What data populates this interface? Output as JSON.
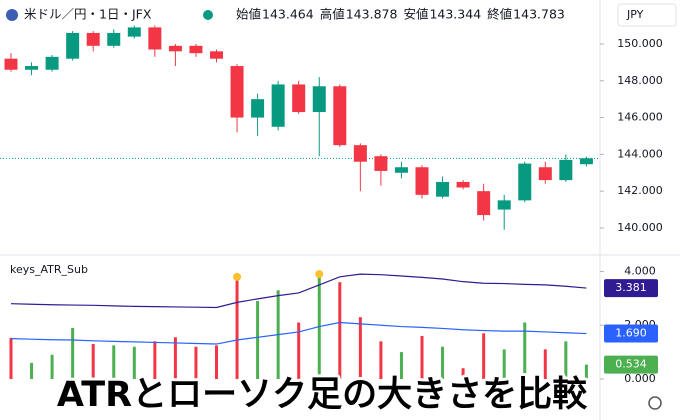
{
  "chart_data": [
    {
      "type": "candlestick",
      "title": "米ドル／円・1日・JFX",
      "currency": "JPY",
      "ohlc_labels": [
        "始値",
        "高値",
        "安値",
        "終値"
      ],
      "ohlc_values": [
        143.464,
        143.878,
        143.344,
        143.783
      ],
      "up_color": "#089981",
      "down_color": "#f23645",
      "open": [
        149.2,
        148.6,
        148.6,
        149.2,
        150.6,
        149.9,
        150.4,
        150.9,
        149.9,
        149.9,
        149.6,
        148.8,
        146.0,
        145.5,
        147.8,
        146.3,
        147.7,
        144.5,
        143.9,
        143.0,
        143.3,
        141.7,
        142.5,
        142.0,
        141.0,
        141.5,
        143.3,
        142.6,
        143.464
      ],
      "high": [
        149.5,
        149.0,
        149.4,
        150.7,
        150.7,
        150.8,
        151.0,
        151.0,
        150.0,
        150.0,
        149.7,
        148.9,
        147.3,
        148.0,
        148.0,
        148.2,
        147.8,
        144.6,
        144.0,
        143.6,
        143.4,
        142.8,
        142.6,
        142.4,
        141.8,
        143.6,
        143.6,
        144.0,
        143.878
      ],
      "low": [
        148.5,
        148.3,
        148.5,
        149.1,
        149.6,
        149.8,
        150.3,
        149.3,
        148.8,
        149.3,
        149.0,
        145.2,
        145.0,
        145.3,
        146.2,
        143.9,
        144.4,
        142.0,
        142.3,
        142.7,
        141.6,
        141.6,
        142.1,
        140.4,
        139.9,
        141.4,
        142.4,
        142.5,
        143.344
      ],
      "close": [
        148.6,
        148.8,
        149.3,
        150.6,
        149.9,
        150.6,
        150.9,
        149.7,
        149.6,
        149.5,
        149.2,
        146.0,
        147.0,
        147.8,
        146.3,
        147.7,
        144.5,
        143.6,
        143.1,
        143.3,
        141.8,
        142.5,
        142.2,
        140.7,
        141.5,
        143.5,
        142.6,
        143.7,
        143.783
      ],
      "last_price": 143.783,
      "ylim": [
        138.53,
        152.39
      ],
      "yticks": [
        {
          "value": 140,
          "label": "140.000"
        },
        {
          "value": 142,
          "label": "142.000"
        },
        {
          "value": 144,
          "label": "144.000"
        },
        {
          "value": 146,
          "label": "146.000"
        },
        {
          "value": 148,
          "label": "148.000"
        },
        {
          "value": 150,
          "label": "150.000"
        }
      ]
    },
    {
      "type": "indicator",
      "title": "keys_ATR_Sub",
      "ylim": [
        -0.41,
        4.5
      ],
      "yticks": [
        {
          "value": 0,
          "label": "0.000"
        },
        {
          "value": 2,
          "label": "2.000"
        },
        {
          "value": 4,
          "label": "4.000"
        }
      ],
      "histogram": {
        "up_color": "#4caf50",
        "down_color": "#f23645",
        "value_label": "0.534",
        "values": [
          1.53,
          0.6,
          0.9,
          1.9,
          1.3,
          1.25,
          1.2,
          1.4,
          1.55,
          1.2,
          1.25,
          3.8,
          2.9,
          3.3,
          2.1,
          3.9,
          3.6,
          2.3,
          1.4,
          1.0,
          1.6,
          1.2,
          0.4,
          1.7,
          1.1,
          2.1,
          1.1,
          1.4,
          0.534
        ]
      },
      "dots": {
        "color": "#fbc02d",
        "values": [
          null,
          null,
          null,
          null,
          null,
          null,
          null,
          null,
          null,
          null,
          null,
          3.8,
          null,
          null,
          null,
          3.9,
          null,
          null,
          null,
          null,
          null,
          null,
          null,
          null,
          null,
          null,
          null,
          null,
          null
        ]
      },
      "series": [
        {
          "color": "#311b92",
          "value_label": "3.381",
          "values": [
            2.8,
            2.78,
            2.76,
            2.75,
            2.74,
            2.72,
            2.7,
            2.69,
            2.68,
            2.67,
            2.66,
            2.85,
            2.98,
            3.1,
            3.2,
            3.5,
            3.8,
            3.9,
            3.88,
            3.83,
            3.78,
            3.72,
            3.62,
            3.56,
            3.55,
            3.52,
            3.5,
            3.45,
            3.381
          ]
        },
        {
          "color": "#2962ff",
          "value_label": "1.690",
          "values": [
            1.5,
            1.48,
            1.46,
            1.45,
            1.42,
            1.4,
            1.38,
            1.36,
            1.34,
            1.32,
            1.3,
            1.45,
            1.55,
            1.65,
            1.75,
            1.95,
            2.1,
            2.05,
            2.0,
            1.95,
            1.92,
            1.88,
            1.83,
            1.8,
            1.78,
            1.78,
            1.75,
            1.72,
            1.69
          ]
        }
      ]
    },
    {
      "type": "banner",
      "text": "ATRとローソク足の大きさを比較"
    }
  ]
}
